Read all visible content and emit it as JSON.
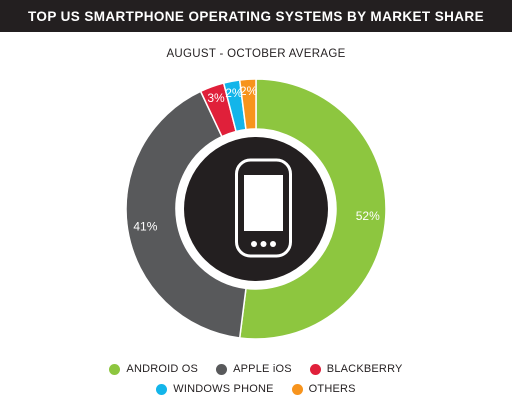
{
  "header": {
    "title": "TOP US SMARTPHONE OPERATING SYSTEMS BY MARKET SHARE",
    "subtitle": "AUGUST - OCTOBER AVERAGE"
  },
  "icon": "smartphone-icon",
  "chart_data": {
    "type": "pie",
    "title": "TOP US SMARTPHONE OPERATING SYSTEMS BY MARKET SHARE",
    "subtitle": "AUGUST - OCTOBER AVERAGE",
    "donut": true,
    "legend_position": "bottom",
    "slices": [
      {
        "name": "ANDROID OS",
        "value": 52,
        "label": "52%",
        "color": "#8dc63f"
      },
      {
        "name": "APPLE iOS",
        "value": 41,
        "label": "41%",
        "color": "#58595b"
      },
      {
        "name": "BLACKBERRY",
        "value": 3,
        "label": "3%",
        "color": "#e0203a"
      },
      {
        "name": "WINDOWS PHONE",
        "value": 2,
        "label": "2%",
        "color": "#13b5ea"
      },
      {
        "name": "OTHERS",
        "value": 2,
        "label": "2%",
        "color": "#f7941d"
      }
    ]
  },
  "legend": {
    "row1": [
      {
        "label": "ANDROID OS",
        "color": "#8dc63f"
      },
      {
        "label": "APPLE iOS",
        "color": "#58595b"
      },
      {
        "label": "BLACKBERRY",
        "color": "#e0203a"
      }
    ],
    "row2": [
      {
        "label": "WINDOWS PHONE",
        "color": "#13b5ea"
      },
      {
        "label": "OTHERS",
        "color": "#f7941d"
      }
    ]
  }
}
